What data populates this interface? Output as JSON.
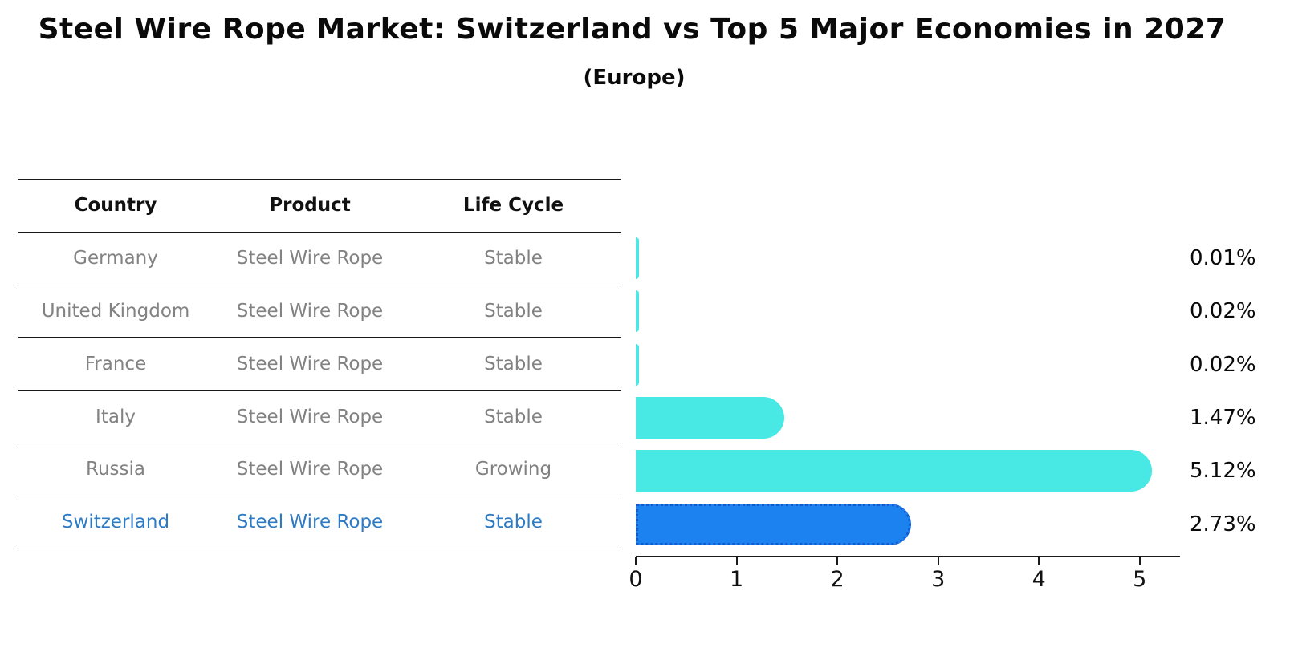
{
  "title": "Steel Wire Rope Market: Switzerland vs Top 5 Major Economies in 2027",
  "subtitle": "(Europe)",
  "table": {
    "headers": [
      "Country",
      "Product",
      "Life Cycle"
    ]
  },
  "chart_data": {
    "type": "bar",
    "orientation": "horizontal",
    "title": "Steel Wire Rope Market: Switzerland vs Top 5 Major Economies in 2027 (Europe)",
    "unit": "%",
    "xlabel": "",
    "ylabel": "",
    "xlim": [
      0,
      5.4
    ],
    "xticks": [
      "0",
      "1",
      "2",
      "3",
      "4",
      "5"
    ],
    "grid": false,
    "legend": false,
    "categories": [
      "Germany",
      "United Kingdom",
      "France",
      "Italy",
      "Russia",
      "Switzerland"
    ],
    "values": [
      0.01,
      0.02,
      0.02,
      1.47,
      5.12,
      2.73
    ],
    "rows": [
      {
        "country": "Germany",
        "product": "Steel Wire Rope",
        "life_cycle": "Stable",
        "value": 0.01,
        "value_label": "0.01%",
        "highlighted": false
      },
      {
        "country": "United Kingdom",
        "product": "Steel Wire Rope",
        "life_cycle": "Stable",
        "value": 0.02,
        "value_label": "0.02%",
        "highlighted": false
      },
      {
        "country": "France",
        "product": "Steel Wire Rope",
        "life_cycle": "Stable",
        "value": 0.02,
        "value_label": "0.02%",
        "highlighted": false
      },
      {
        "country": "Italy",
        "product": "Steel Wire Rope",
        "life_cycle": "Stable",
        "value": 1.47,
        "value_label": "1.47%",
        "highlighted": false
      },
      {
        "country": "Russia",
        "product": "Steel Wire Rope",
        "life_cycle": "Growing",
        "value": 5.12,
        "value_label": "5.12%",
        "highlighted": false
      },
      {
        "country": "Switzerland",
        "product": "Steel Wire Rope",
        "life_cycle": "Stable",
        "value": 2.73,
        "value_label": "2.73%",
        "highlighted": true
      }
    ],
    "colors": {
      "bar": "#48E8E4",
      "highlight_bar_fill": "#1C82F0",
      "highlight_bar_border": "#1559CE",
      "highlight_row_text": "#2E7BC4",
      "row_text": "#828282",
      "header_text": "#111111"
    }
  }
}
